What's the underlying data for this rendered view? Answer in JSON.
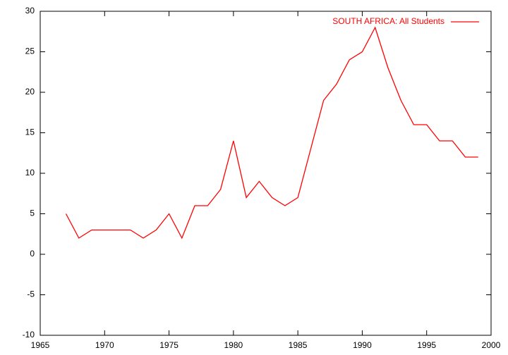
{
  "chart_data": {
    "type": "line",
    "x": [
      1967,
      1968,
      1969,
      1970,
      1971,
      1972,
      1973,
      1974,
      1975,
      1976,
      1977,
      1978,
      1979,
      1980,
      1981,
      1982,
      1983,
      1984,
      1985,
      1986,
      1987,
      1988,
      1989,
      1990,
      1991,
      1992,
      1993,
      1994,
      1995,
      1996,
      1997,
      1998,
      1999
    ],
    "series": [
      {
        "name": "SOUTH AFRICA: All Students",
        "color": "#ff0000",
        "values": [
          5,
          2,
          3,
          3,
          3,
          3,
          2,
          3,
          5,
          2,
          6,
          6,
          8,
          14,
          7,
          9,
          7,
          6,
          7,
          13,
          19,
          21,
          24,
          25,
          28,
          23,
          19,
          16,
          16,
          14,
          14,
          12,
          12
        ]
      }
    ],
    "xlim": [
      1965,
      2000
    ],
    "xticks": [
      1965,
      1970,
      1975,
      1980,
      1985,
      1990,
      1995,
      2000
    ],
    "ylim": [
      -10,
      30
    ],
    "yticks": [
      -10,
      -5,
      0,
      5,
      10,
      15,
      20,
      25,
      30
    ],
    "legend": "top-right",
    "grid": false
  }
}
